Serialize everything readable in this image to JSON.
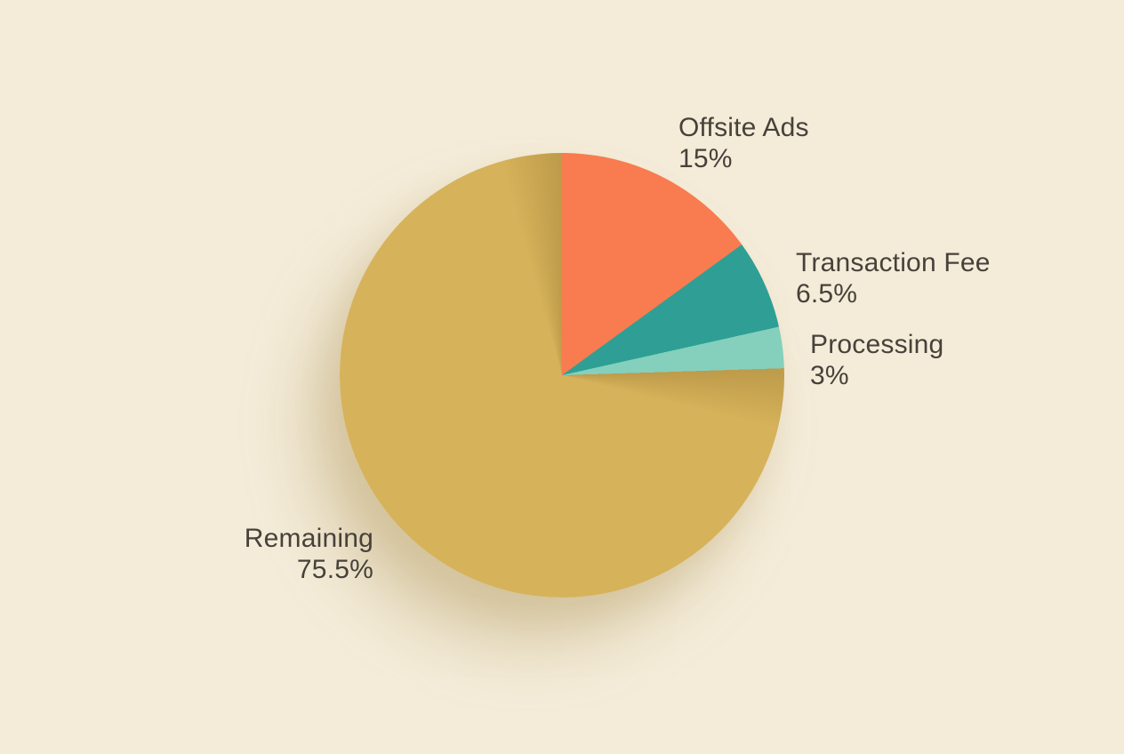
{
  "figure": {
    "background_color": "#F4ECD9",
    "text_color": "#48413A"
  },
  "chart_data": {
    "type": "pie",
    "title": "",
    "legend_position": "none",
    "labels_position": "outside",
    "start_angle_deg": 0,
    "direction": "clockwise",
    "segments": [
      {
        "label": "Offsite Ads",
        "value_pct": 15,
        "value_label": "15%",
        "color": "#F87C50"
      },
      {
        "label": "Transaction Fee",
        "value_pct": 6.5,
        "value_label": "6.5%",
        "color": "#2F9F95"
      },
      {
        "label": "Processing",
        "value_pct": 3,
        "value_label": "3%",
        "color": "#84D0BD"
      },
      {
        "label": "Remaining",
        "value_pct": 75.5,
        "value_label": "75.5%",
        "color": "#D6B25A"
      }
    ]
  }
}
